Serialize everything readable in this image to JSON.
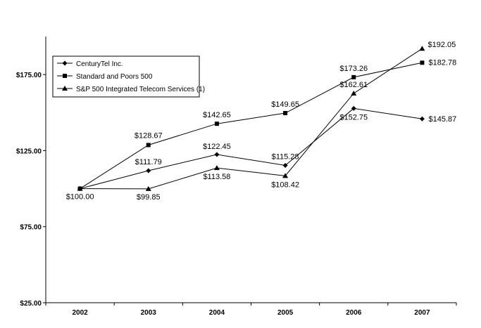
{
  "chart_data": {
    "type": "line",
    "categories": [
      "2002",
      "2003",
      "2004",
      "2005",
      "2006",
      "2007"
    ],
    "ylim": [
      25,
      200
    ],
    "yticks": [
      25,
      75,
      125,
      175
    ],
    "ytick_labels": [
      "$25.00",
      "$75.00",
      "$125.00",
      "$175.00"
    ],
    "grid": false,
    "legend_position": "top-left",
    "series": [
      {
        "name": "CenturyTel Inc.",
        "marker": "diamond",
        "values": [
          100.0,
          111.79,
          122.45,
          115.28,
          152.75,
          145.87
        ],
        "labels": [
          "$100.00",
          "$111.79",
          "$122.45",
          "$115.28",
          "$152.75",
          "$145.87"
        ]
      },
      {
        "name": "Standard and Poors 500",
        "marker": "square",
        "values": [
          100.0,
          128.67,
          142.65,
          149.65,
          173.26,
          182.78
        ],
        "labels": [
          "",
          "$128.67",
          "$142.65",
          "$149.65",
          "$173.26",
          "$182.78"
        ]
      },
      {
        "name": "S&P 500 Integrated Telecom Services (1)",
        "marker": "triangle",
        "values": [
          100.0,
          99.85,
          113.58,
          108.42,
          162.61,
          192.05
        ],
        "labels": [
          "",
          "$99.85",
          "$113.58",
          "$108.42",
          "$162.61",
          "$192.05"
        ]
      }
    ]
  }
}
